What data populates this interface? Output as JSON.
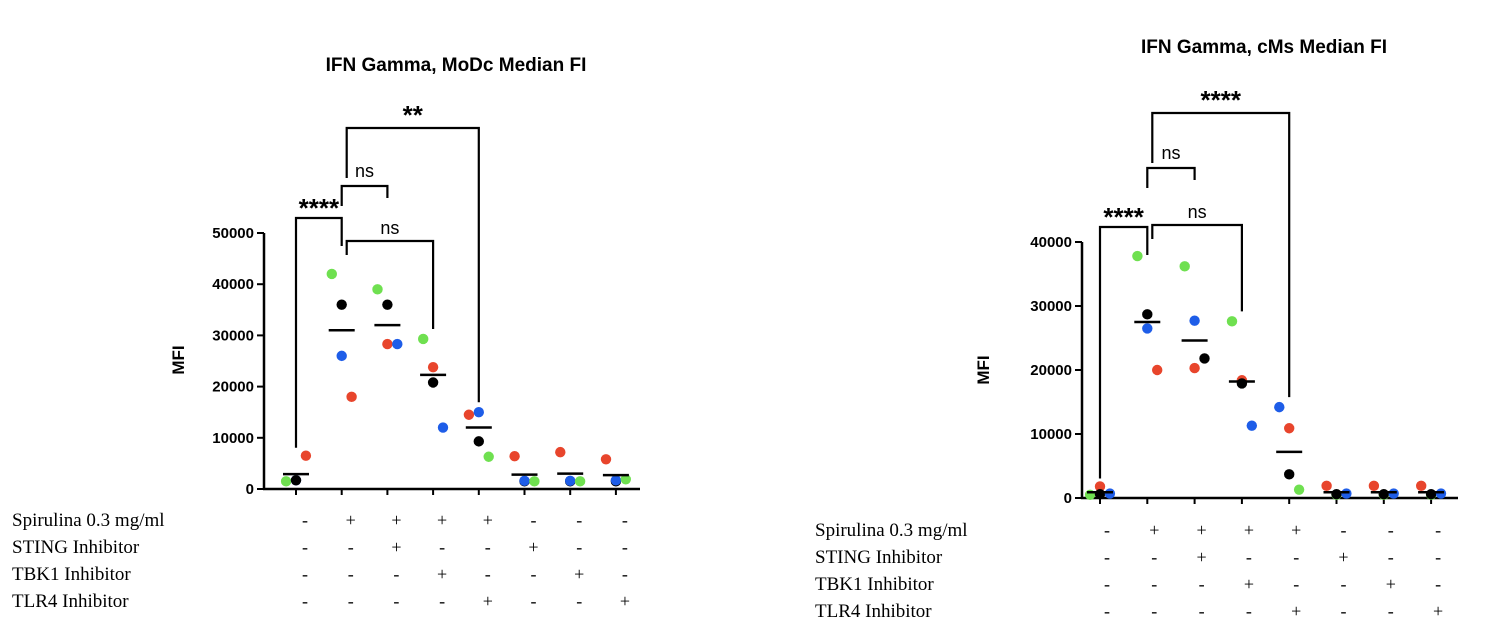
{
  "chart_data": [
    {
      "type": "scatter",
      "title": "IFN Gamma, MoDc Median FI",
      "ylabel": "MFI",
      "ylim": [
        0,
        50000
      ],
      "yticks": [
        "0",
        "10000",
        "20000",
        "30000",
        "40000",
        "50000"
      ],
      "groups": 8,
      "series_colors": {
        "green": "#6fe050",
        "blue": "#1e5de8",
        "black": "#000000",
        "red": "#e8452c"
      },
      "points": [
        [
          {
            "c": "green",
            "v": 1500
          },
          {
            "c": "blue",
            "v": 1700
          },
          {
            "c": "black",
            "v": 1700
          },
          {
            "c": "red",
            "v": 6500
          }
        ],
        [
          {
            "c": "green",
            "v": 42000
          },
          {
            "c": "black",
            "v": 36000
          },
          {
            "c": "blue",
            "v": 26000
          },
          {
            "c": "red",
            "v": 18000
          }
        ],
        [
          {
            "c": "green",
            "v": 39000
          },
          {
            "c": "black",
            "v": 36000
          },
          {
            "c": "red",
            "v": 28300
          },
          {
            "c": "blue",
            "v": 28300
          }
        ],
        [
          {
            "c": "green",
            "v": 29300
          },
          {
            "c": "red",
            "v": 23800
          },
          {
            "c": "black",
            "v": 20800
          },
          {
            "c": "blue",
            "v": 12000
          }
        ],
        [
          {
            "c": "red",
            "v": 14500
          },
          {
            "c": "blue",
            "v": 15000
          },
          {
            "c": "black",
            "v": 9300
          },
          {
            "c": "green",
            "v": 6300
          }
        ],
        [
          {
            "c": "red",
            "v": 6400
          },
          {
            "c": "black",
            "v": 1500
          },
          {
            "c": "blue",
            "v": 1600
          },
          {
            "c": "green",
            "v": 1500
          }
        ],
        [
          {
            "c": "red",
            "v": 7200
          },
          {
            "c": "black",
            "v": 1500
          },
          {
            "c": "blue",
            "v": 1600
          },
          {
            "c": "green",
            "v": 1500
          }
        ],
        [
          {
            "c": "red",
            "v": 5800
          },
          {
            "c": "black",
            "v": 1500
          },
          {
            "c": "blue",
            "v": 1700
          },
          {
            "c": "green",
            "v": 1900
          }
        ]
      ],
      "means": [
        2900,
        31000,
        32000,
        22300,
        12000,
        2800,
        3000,
        2700
      ],
      "significance": [
        {
          "label": "****",
          "from": 1,
          "to": 2
        },
        {
          "label": "ns",
          "from": 2,
          "to": 3
        },
        {
          "label": "ns",
          "from": 2,
          "to": 4
        },
        {
          "label": "**",
          "from": 2,
          "to": 5
        }
      ],
      "conditions": [
        {
          "label": "Spirulina 0.3 mg/ml",
          "values": [
            "-",
            "+",
            "+",
            "+",
            "+",
            "-",
            "-",
            "-"
          ]
        },
        {
          "label": "STING Inhibitor",
          "values": [
            "-",
            "-",
            "+",
            "-",
            "-",
            "+",
            "-",
            "-"
          ]
        },
        {
          "label": "TBK1 Inhibitor",
          "values": [
            "-",
            "-",
            "-",
            "+",
            "-",
            "-",
            "+",
            "-"
          ]
        },
        {
          "label": "TLR4 Inhibitor",
          "values": [
            "-",
            "-",
            "-",
            "-",
            "+",
            "-",
            "-",
            "+"
          ]
        }
      ]
    },
    {
      "type": "scatter",
      "title": "IFN Gamma, cMs Median FI",
      "ylabel": "MFI",
      "ylim": [
        0,
        40000
      ],
      "yticks": [
        "0",
        "10000",
        "20000",
        "30000",
        "40000"
      ],
      "groups": 8,
      "series_colors": {
        "green": "#6fe050",
        "blue": "#1e5de8",
        "black": "#000000",
        "red": "#e8452c"
      },
      "points": [
        [
          {
            "c": "green",
            "v": 500
          },
          {
            "c": "red",
            "v": 1800
          },
          {
            "c": "black",
            "v": 600
          },
          {
            "c": "blue",
            "v": 700
          }
        ],
        [
          {
            "c": "green",
            "v": 37800
          },
          {
            "c": "black",
            "v": 28700
          },
          {
            "c": "blue",
            "v": 26500
          },
          {
            "c": "red",
            "v": 20000
          }
        ],
        [
          {
            "c": "green",
            "v": 36200
          },
          {
            "c": "blue",
            "v": 27700
          },
          {
            "c": "red",
            "v": 20300
          },
          {
            "c": "black",
            "v": 21800
          }
        ],
        [
          {
            "c": "green",
            "v": 27600
          },
          {
            "c": "red",
            "v": 18400
          },
          {
            "c": "black",
            "v": 17900
          },
          {
            "c": "blue",
            "v": 11300
          }
        ],
        [
          {
            "c": "blue",
            "v": 14200
          },
          {
            "c": "red",
            "v": 10900
          },
          {
            "c": "black",
            "v": 3700
          },
          {
            "c": "green",
            "v": 1300
          }
        ],
        [
          {
            "c": "red",
            "v": 1900
          },
          {
            "c": "green",
            "v": 500
          },
          {
            "c": "black",
            "v": 600
          },
          {
            "c": "blue",
            "v": 700
          }
        ],
        [
          {
            "c": "red",
            "v": 1900
          },
          {
            "c": "green",
            "v": 500
          },
          {
            "c": "black",
            "v": 600
          },
          {
            "c": "blue",
            "v": 700
          }
        ],
        [
          {
            "c": "red",
            "v": 1900
          },
          {
            "c": "green",
            "v": 500
          },
          {
            "c": "black",
            "v": 600
          },
          {
            "c": "blue",
            "v": 700
          }
        ]
      ],
      "means": [
        900,
        27500,
        24600,
        18200,
        7200,
        900,
        900,
        900
      ],
      "significance": [
        {
          "label": "****",
          "from": 1,
          "to": 2
        },
        {
          "label": "ns",
          "from": 2,
          "to": 3
        },
        {
          "label": "ns",
          "from": 2,
          "to": 4
        },
        {
          "label": "****",
          "from": 2,
          "to": 5
        }
      ],
      "conditions": [
        {
          "label": "Spirulina 0.3 mg/ml",
          "values": [
            "-",
            "+",
            "+",
            "+",
            "+",
            "-",
            "-",
            "-"
          ]
        },
        {
          "label": "STING Inhibitor",
          "values": [
            "-",
            "-",
            "+",
            "-",
            "-",
            "+",
            "-",
            "-"
          ]
        },
        {
          "label": "TBK1 Inhibitor",
          "values": [
            "-",
            "-",
            "-",
            "+",
            "-",
            "-",
            "+",
            "-"
          ]
        },
        {
          "label": "TLR4 Inhibitor",
          "values": [
            "-",
            "-",
            "-",
            "-",
            "+",
            "-",
            "-",
            "+"
          ]
        }
      ]
    }
  ]
}
